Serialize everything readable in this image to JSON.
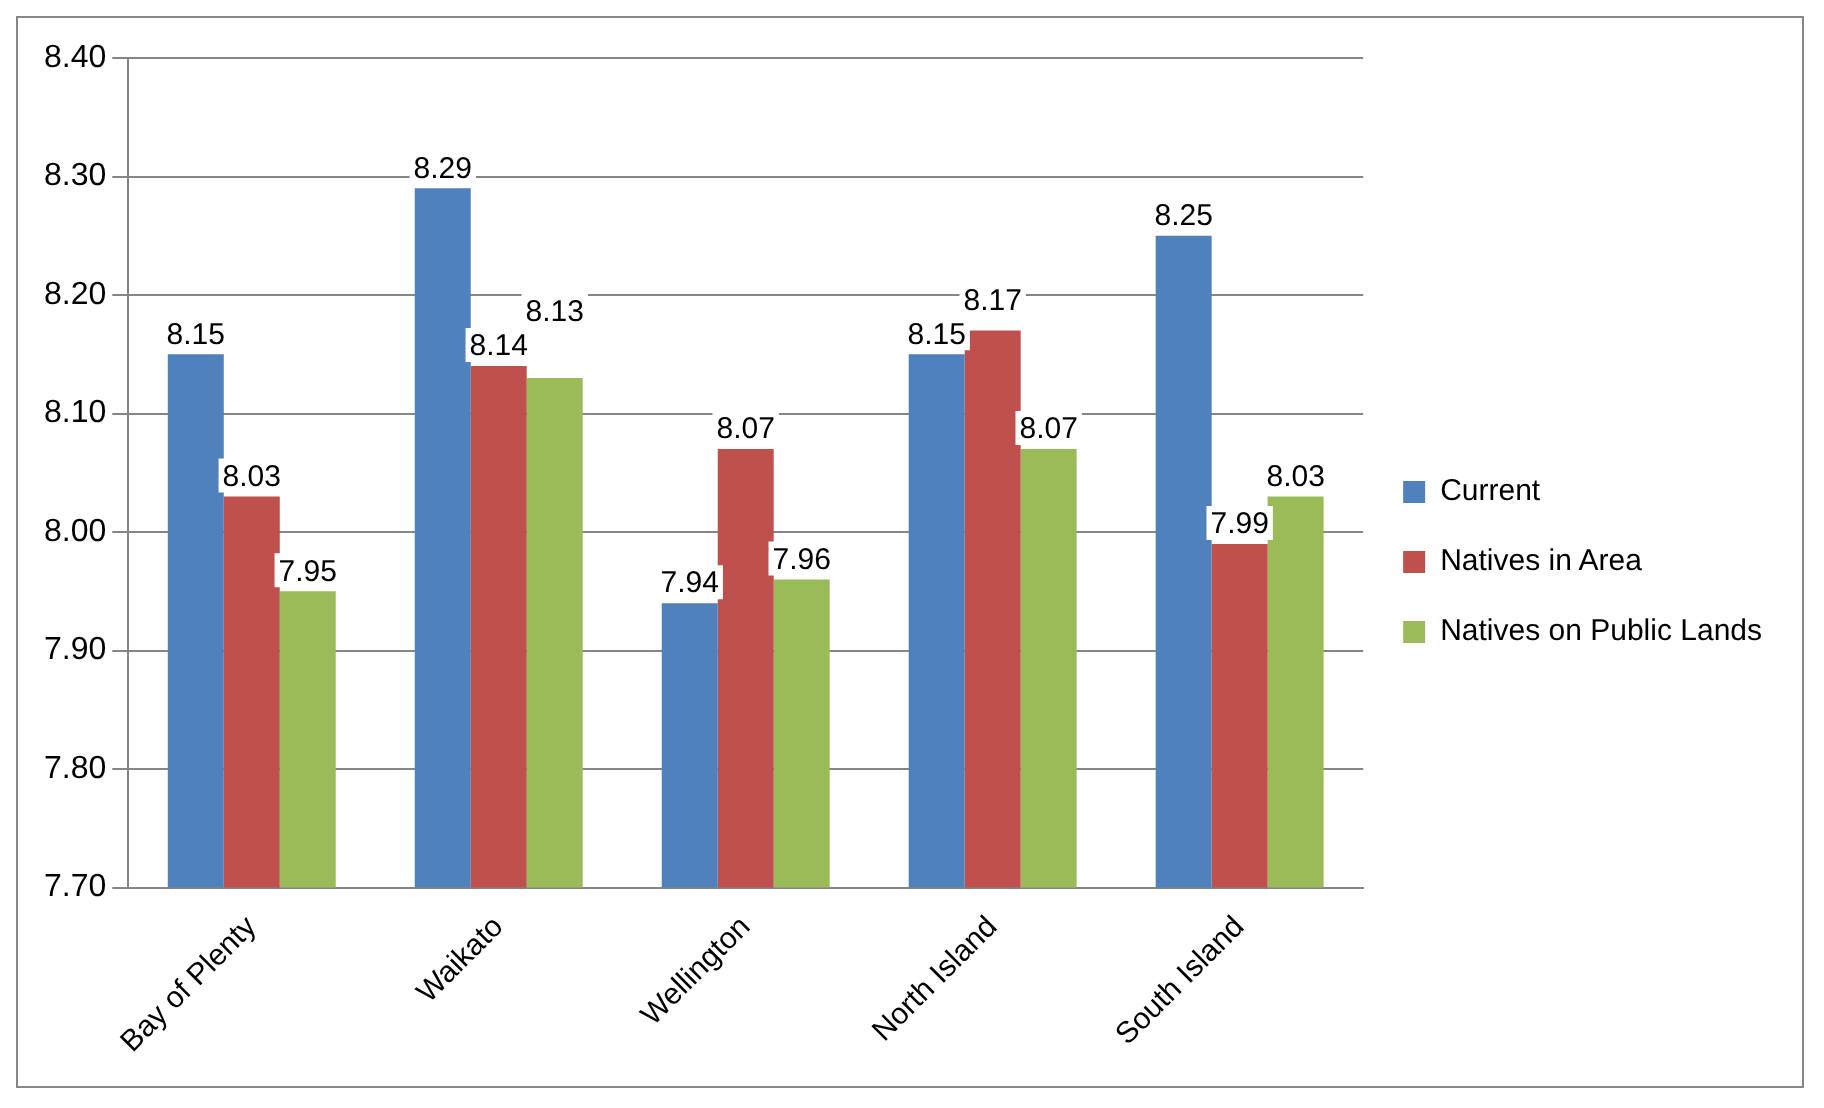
{
  "chart_data": {
    "type": "bar",
    "categories": [
      "Bay of Plenty",
      "Waikato",
      "Wellington",
      "North Island",
      "South Island"
    ],
    "series": [
      {
        "name": "Current",
        "color": "#4f81bd",
        "values": [
          8.15,
          8.29,
          7.94,
          8.15,
          8.25
        ]
      },
      {
        "name": "Natives in Area",
        "color": "#c0504d",
        "values": [
          8.03,
          8.14,
          8.07,
          8.17,
          7.99
        ]
      },
      {
        "name": "Natives on Public Lands",
        "color": "#9bbb59",
        "values": [
          7.95,
          8.13,
          7.96,
          8.07,
          8.03
        ]
      }
    ],
    "ylim": [
      7.7,
      8.4
    ],
    "yticks": [
      {
        "value": 7.7,
        "label": "7.70"
      },
      {
        "value": 7.8,
        "label": "7.80"
      },
      {
        "value": 7.9,
        "label": "7.90"
      },
      {
        "value": 8.0,
        "label": "8.00"
      },
      {
        "value": 8.1,
        "label": "8.10"
      },
      {
        "value": 8.2,
        "label": "8.20"
      },
      {
        "value": 8.3,
        "label": "8.30"
      },
      {
        "value": 8.4,
        "label": "8.40"
      }
    ],
    "grid": "y",
    "legend": "right",
    "data_labels": true
  }
}
